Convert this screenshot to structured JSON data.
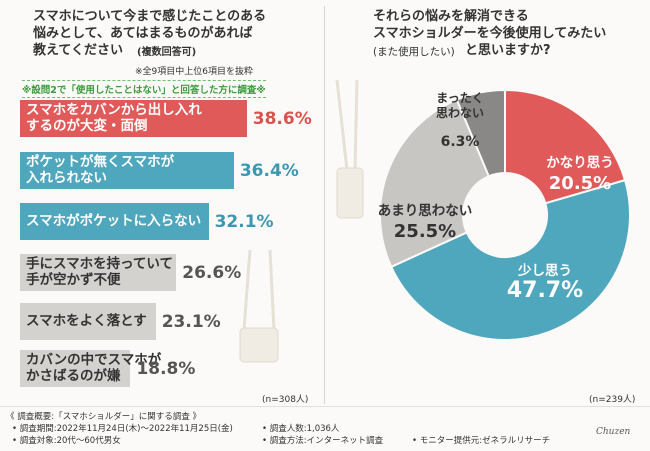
{
  "left_chart": {
    "title_lines": [
      "スマホについて今まで感じたことのある",
      "悩みとして、あてはまるものがあれば",
      "教えてください"
    ],
    "multi_answer": "(複数回答可)",
    "subnote": "※全9項目中上位6項目を抜粋",
    "condition": "※設問2で「使用したことはない」と回答した方に調査※",
    "n_label": "(n=308人)"
  },
  "right_chart": {
    "title_lines": [
      "それらの悩みを解消できる",
      "スマホショルダーを今後使用してみたい"
    ],
    "title_line3a": "(また使用したい)",
    "title_line3b": "と思いますか?",
    "n_label": "(n=239人)"
  },
  "chart_data": [
    {
      "type": "bar",
      "orientation": "horizontal",
      "unit": "%",
      "categories": [
        [
          "スマホをカバンから出し入れ",
          "するのが大変・面倒"
        ],
        [
          "ポケットが無くスマホが",
          "入れられない"
        ],
        [
          "スマホがポケットに入らない"
        ],
        [
          "手にスマホを持っていて",
          "手が空かず不便"
        ],
        [
          "スマホをよく落とす"
        ],
        [
          "カバンの中でスマホが",
          "かさばるのが嫌"
        ]
      ],
      "values": [
        38.6,
        36.4,
        32.1,
        26.6,
        23.1,
        18.8
      ],
      "value_labels": [
        "38.6%",
        "36.4%",
        "32.1%",
        "26.6%",
        "23.1%",
        "18.8%"
      ],
      "colors": [
        "#e05a5a",
        "#4fa7bd",
        "#4fa7bd",
        "#d4d2cf",
        "#d4d2cf",
        "#d4d2cf"
      ]
    },
    {
      "type": "pie",
      "donut": true,
      "unit": "%",
      "labels": [
        [
          "かなり思う"
        ],
        [
          "少し思う"
        ],
        [
          "あまり思わない"
        ],
        [
          "まったく",
          "思わない"
        ]
      ],
      "values": [
        20.5,
        47.7,
        25.5,
        6.3
      ],
      "value_labels": [
        "20.5%",
        "47.7%",
        "25.5%",
        "6.3%"
      ],
      "colors": [
        "#e05a5a",
        "#4fa7bd",
        "#c8c6c3",
        "#8a8886"
      ]
    }
  ],
  "footer": {
    "title": "《 調査概要:「スマホショルダー」に関する調査 》",
    "period": "• 調査期間:2022年11月24日(木)〜2022年11月25日(金)",
    "target": "• 調査対象:20代〜60代男女",
    "people": "• 調査人数:1,036人",
    "method": "• 調査方法:インターネット調査",
    "provider": "• モニター提供元:ゼネラルリサーチ",
    "signature": "Chuzen"
  }
}
